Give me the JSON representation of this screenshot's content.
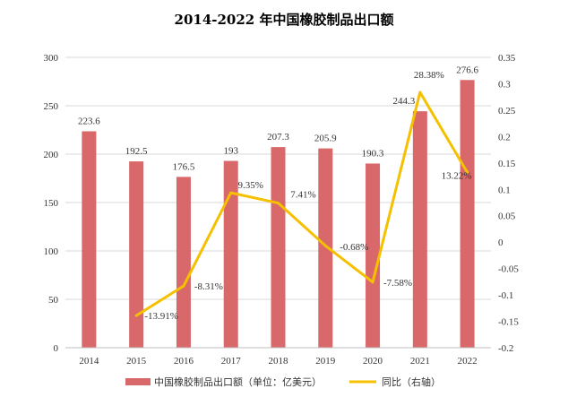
{
  "chart_data": {
    "type": "bar+line",
    "title": "2014-2022 年中国橡胶制品出口额",
    "categories": [
      "2014",
      "2015",
      "2016",
      "2017",
      "2018",
      "2019",
      "2020",
      "2021",
      "2022"
    ],
    "series": [
      {
        "name": "中国橡胶制品出口额（单位：亿美元）",
        "type": "bar",
        "axis": "left",
        "color": "#d9686a",
        "values": [
          223.6,
          192.5,
          176.5,
          193,
          207.3,
          205.9,
          190.3,
          244.3,
          276.6
        ],
        "labels": [
          "223.6",
          "192.5",
          "176.5",
          "193",
          "207.3",
          "205.9",
          "190.3",
          "244.3",
          "276.6"
        ]
      },
      {
        "name": "同比（右轴）",
        "type": "line",
        "axis": "right",
        "color": "#f5c000",
        "values": [
          null,
          -0.1391,
          -0.0831,
          0.0935,
          0.0741,
          -0.0068,
          -0.0758,
          0.2838,
          0.1322
        ],
        "labels": [
          "",
          "-13.91%",
          "-8.31%",
          "9.35%",
          "7.41%",
          "-0.68%",
          "-7.58%",
          "28.38%",
          "13.22%"
        ]
      }
    ],
    "y_left": {
      "lim": [
        0,
        300
      ],
      "ticks": [
        "0",
        "50",
        "100",
        "150",
        "200",
        "250",
        "300"
      ]
    },
    "y_right": {
      "lim": [
        -0.2,
        0.35
      ],
      "ticks": [
        "-0.2",
        "-0.15",
        "-0.1",
        "-0.05",
        "0",
        "0.05",
        "0.1",
        "0.15",
        "0.2",
        "0.25",
        "0.3",
        "0.35"
      ]
    },
    "grid": true,
    "legend": "bottom"
  }
}
